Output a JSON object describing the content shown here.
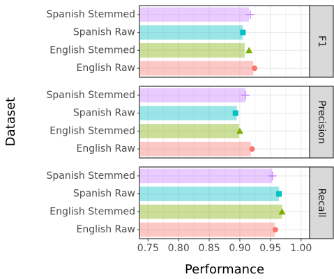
{
  "chart_data": {
    "type": "bar",
    "xlabel": "Performance",
    "ylabel": "Dataset",
    "categories": [
      "Spanish Stemmed",
      "Spanish Raw",
      "English Stemmed",
      "English Raw"
    ],
    "colors": [
      "#c77cff",
      "#00bfc4",
      "#7cae00",
      "#f8766d"
    ],
    "shapes": [
      "plus",
      "square",
      "triangle",
      "circle"
    ],
    "xlim": [
      0.736,
      1.014
    ],
    "xticks": [
      0.75,
      {
        "value": 0.8,
        "label": "0.80"
      },
      0.85,
      {
        "value": 0.9,
        "label": "0.90"
      },
      0.95,
      {
        "value": 1.0,
        "label": "1.00"
      }
    ],
    "grid": true,
    "facets": [
      {
        "title": "F1",
        "values": [
          0.915,
          0.905,
          0.908,
          0.922
        ],
        "points": [
          0.917,
          0.905,
          0.915,
          0.924
        ]
      },
      {
        "title": "Precision",
        "values": [
          0.909,
          0.895,
          0.899,
          0.918
        ],
        "points": [
          0.909,
          0.893,
          0.9,
          0.92
        ]
      },
      {
        "title": "Recall",
        "values": [
          0.953,
          0.964,
          0.969,
          0.957
        ],
        "points": [
          0.953,
          0.964,
          0.969,
          0.958
        ]
      }
    ]
  }
}
